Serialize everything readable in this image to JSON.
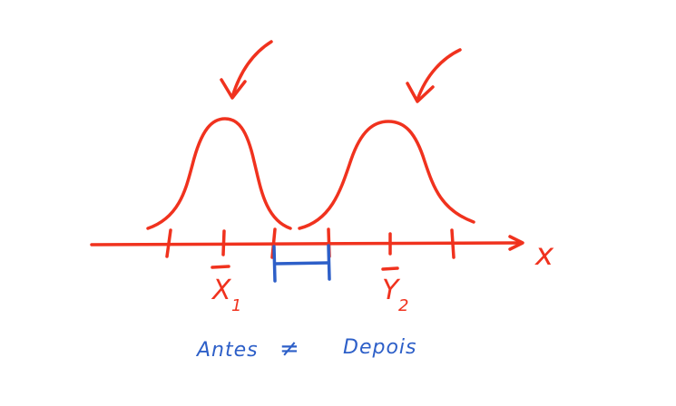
{
  "colors": {
    "red_ink": "#f0321e",
    "blue_ink": "#2d5fc8",
    "background": "#ffffff"
  },
  "axis": {
    "label": "x"
  },
  "means": [
    {
      "symbol": "X",
      "subscript": "1"
    },
    {
      "symbol": "Y",
      "subscript": "2"
    }
  ],
  "caption": {
    "left": "Antes",
    "operator": "≠",
    "right": "Depois"
  }
}
